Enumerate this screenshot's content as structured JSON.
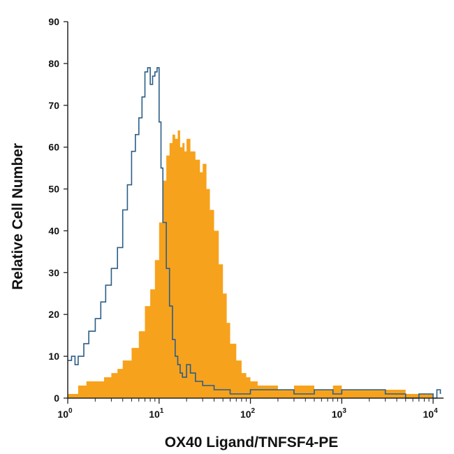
{
  "chart_data": {
    "type": "area",
    "title": "",
    "xlabel": "OX40 Ligand/TNFSF4-PE",
    "ylabel": "Relative Cell Number",
    "x_scale": "log",
    "xlim": [
      1,
      13000
    ],
    "ylim": [
      0,
      90
    ],
    "grid": false,
    "legend": "none",
    "x_ticks": [
      {
        "value": 1,
        "base": "10",
        "exp": "0"
      },
      {
        "value": 10,
        "base": "10",
        "exp": "1"
      },
      {
        "value": 100,
        "base": "10",
        "exp": "2"
      },
      {
        "value": 1000,
        "base": "10",
        "exp": "3"
      },
      {
        "value": 10000,
        "base": "10",
        "exp": "4"
      }
    ],
    "y_ticks": [
      "0",
      "10",
      "20",
      "30",
      "40",
      "50",
      "60",
      "70",
      "80",
      "90"
    ],
    "series": [
      {
        "kind": "filled",
        "color": "#f7a21c",
        "x": [
          1.0,
          1.3,
          1.6,
          2.0,
          2.5,
          3.0,
          3.5,
          4.0,
          5.0,
          6.0,
          7.0,
          8.0,
          9.0,
          10.0,
          11.0,
          12.0,
          13.0,
          14.0,
          15.0,
          16.0,
          17.0,
          18.0,
          19.0,
          20.0,
          22.0,
          25.0,
          28.0,
          30.0,
          33.0,
          36.0,
          40.0,
          45.0,
          50.0,
          55.0,
          60.0,
          70.0,
          80.0,
          90.0,
          100.0,
          120.0,
          150.0,
          200.0,
          300.0,
          500.0,
          800.0,
          1000.0,
          1500.0,
          2000.0,
          3000.0,
          5000.0,
          7000.0,
          10000.0
        ],
        "y": [
          1,
          3,
          4,
          4,
          5,
          6,
          7,
          9,
          12,
          16,
          22,
          26,
          33,
          42,
          52,
          58,
          61,
          63,
          62,
          64,
          60,
          61,
          59,
          62,
          59,
          57,
          54,
          56,
          50,
          45,
          40,
          32,
          25,
          18,
          13,
          9,
          6,
          5,
          4,
          3,
          3,
          2,
          3,
          2,
          3,
          2,
          2,
          2,
          2,
          1,
          1,
          0
        ]
      },
      {
        "kind": "outline",
        "color": "#2b5d86",
        "x": [
          1.0,
          1.1,
          1.2,
          1.3,
          1.5,
          1.7,
          2.0,
          2.3,
          2.6,
          3.0,
          3.5,
          4.0,
          4.5,
          5.0,
          5.5,
          6.0,
          6.5,
          7.0,
          7.5,
          8.0,
          8.5,
          9.0,
          9.5,
          10.0,
          10.5,
          11.0,
          12.0,
          13.0,
          14.0,
          15.0,
          16.0,
          17.0,
          18.0,
          20.0,
          22.0,
          25.0,
          28.0,
          30.0,
          35.0,
          40.0,
          50.0,
          60.0,
          80.0,
          100.0,
          150.0,
          200.0,
          300.0,
          500.0,
          800.0,
          1000.0,
          2000.0,
          3000.0,
          5000.0,
          7000.0,
          9000.0,
          10000.0,
          11000.0,
          12000.0
        ],
        "y": [
          9,
          10,
          8,
          10,
          13,
          16,
          19,
          23,
          27,
          31,
          36,
          45,
          51,
          59,
          63,
          67,
          72,
          78,
          79,
          75,
          77,
          78,
          79,
          66,
          55,
          42,
          31,
          22,
          14,
          10,
          8,
          6,
          5,
          8,
          6,
          4,
          4,
          3,
          3,
          2,
          2,
          1,
          1,
          2,
          2,
          2,
          1,
          2,
          1,
          2,
          2,
          1,
          0,
          1,
          1,
          0,
          2,
          1
        ]
      }
    ]
  }
}
